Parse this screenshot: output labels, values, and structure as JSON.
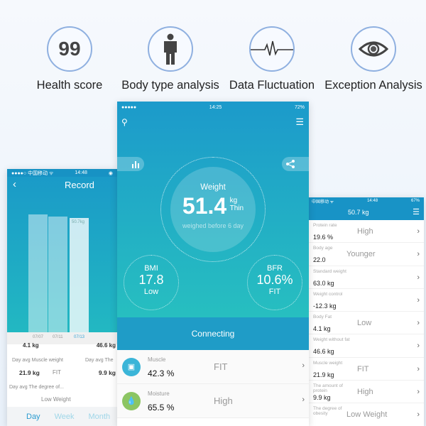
{
  "features": [
    {
      "label": "Health score",
      "icon": "99",
      "icon_name": "score-icon"
    },
    {
      "label": "Body type analysis",
      "icon_name": "person-icon"
    },
    {
      "label": "Data Fluctuation",
      "icon_name": "pulse-icon"
    },
    {
      "label": "Exception Analysis",
      "icon_name": "eye-icon"
    }
  ],
  "left": {
    "status_left": "●●●●○ 中国移动 ᯤ",
    "status_time": "14:48",
    "title": "Record",
    "chart_data": {
      "type": "bar",
      "categories": [
        "07/07",
        "07/11",
        "07/13"
      ],
      "values": [
        51.4,
        51.0,
        50.7
      ],
      "data_label": "50.7kg"
    },
    "cut_values": [
      "4.1 kg",
      "Low",
      "46.6 kg"
    ],
    "stats": [
      {
        "label": "Day avg Muscle weight",
        "value": "21.9 kg",
        "status": "FIT"
      },
      {
        "label": "Day avg The",
        "value": "9.9 kg"
      }
    ],
    "stat3": {
      "label": "Day avg The degree of...",
      "status": "Low Weight"
    },
    "tabs": [
      "Day",
      "Week",
      "Month"
    ]
  },
  "center": {
    "status_left": "●●●●●",
    "status_time": "14:25",
    "status_battery": "72%",
    "weight": {
      "label": "Weight",
      "value": "51.4",
      "unit": "kg",
      "status": "Thin",
      "note": "weighed before 6 day"
    },
    "bmi": {
      "label": "BMI",
      "value": "17.8",
      "status": "Low"
    },
    "bfr": {
      "label": "BFR",
      "value": "10.6%",
      "status": "FIT"
    },
    "connecting": "Connecting",
    "rows": [
      {
        "label": "Muscle",
        "value": "42.3 %",
        "status": "FIT",
        "color": "#3bb5d8"
      },
      {
        "label": "Moisture",
        "value": "65.5 %",
        "status": "High",
        "color": "#8cc563"
      }
    ]
  },
  "right": {
    "status_time": "14:48",
    "status_battery": "67%",
    "title": "50.7 kg",
    "rows": [
      {
        "label": "Protein rate",
        "value": "19.6 %",
        "status": "High"
      },
      {
        "label": "Body age",
        "value": "22.0",
        "status": "Younger"
      },
      {
        "label": "Standard weight",
        "value": "63.0 kg",
        "status": ""
      },
      {
        "label": "Weight control",
        "value": "-12.3 kg",
        "status": ""
      },
      {
        "label": "Body Fat",
        "value": "4.1 kg",
        "status": "Low"
      },
      {
        "label": "Weight without fat",
        "value": "46.6 kg",
        "status": ""
      },
      {
        "label": "Muscle weight",
        "value": "21.9 kg",
        "status": "FIT"
      },
      {
        "label": "The amount of protein",
        "value": "9.9 kg",
        "status": "High"
      },
      {
        "label": "The degree of obesity",
        "value": "",
        "status": "Low Weight"
      }
    ]
  }
}
